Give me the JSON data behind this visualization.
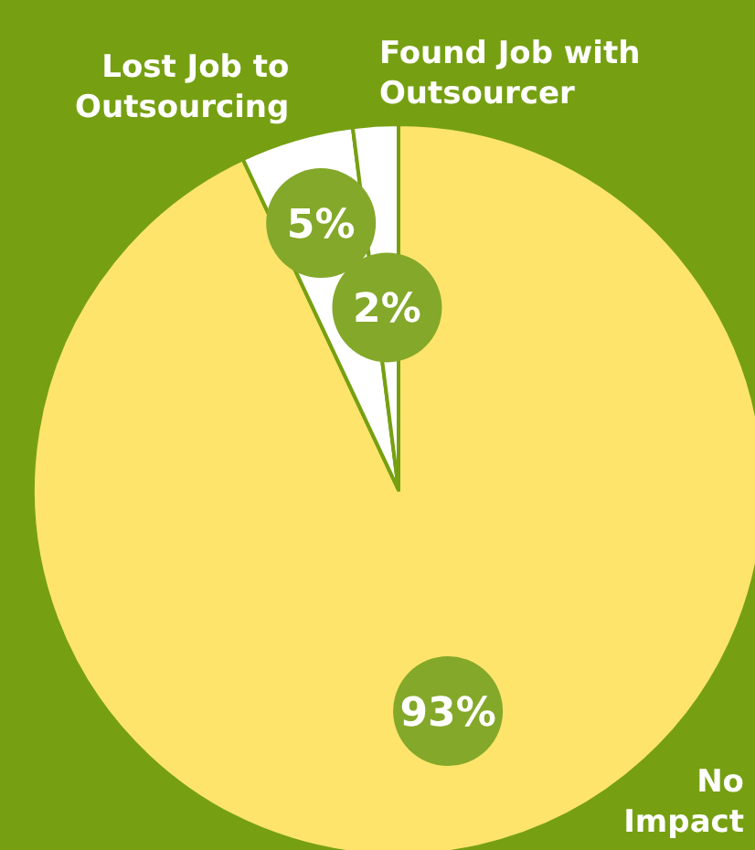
{
  "chart_data": {
    "type": "pie",
    "categories": [
      "No\nImpact",
      "Lost Job to\nOutsourcing",
      "Found Job with\nOutsourcer"
    ],
    "values": [
      93,
      5,
      2
    ],
    "value_labels": [
      "93%",
      "5%",
      "2%"
    ],
    "colors": [
      "#fee46b",
      "#ffffff",
      "#ffffff"
    ]
  }
}
